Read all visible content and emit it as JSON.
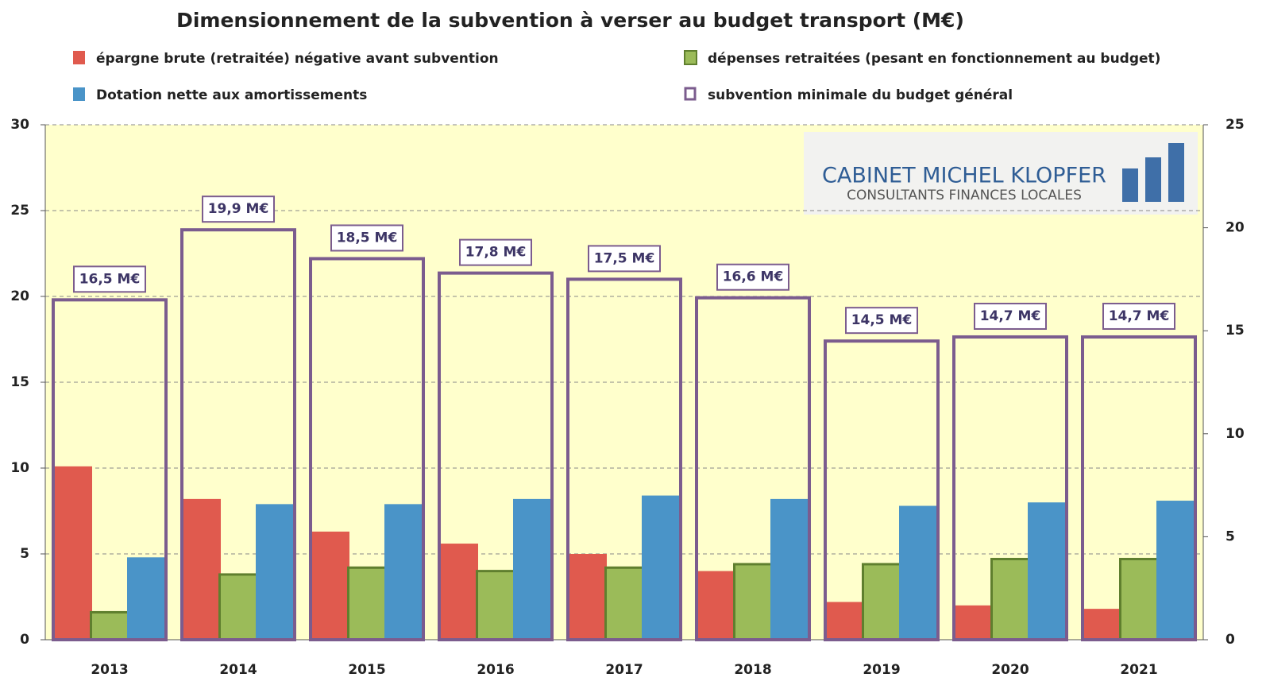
{
  "chart_data": {
    "type": "bar",
    "title": "Dimensionnement de la subvention à verser au budget transport (M€)",
    "categories": [
      "2013",
      "2014",
      "2015",
      "2016",
      "2017",
      "2018",
      "2019",
      "2020",
      "2021"
    ],
    "series": [
      {
        "name": "épargne brute (retraitée) négative avant subvention",
        "color": "#e05a4e",
        "values": [
          10.1,
          8.2,
          6.3,
          5.6,
          5.0,
          4.0,
          2.2,
          2.0,
          1.8
        ]
      },
      {
        "name": "dépenses retraitées (pesant en fonctionnement au budget)",
        "color": "#9bbb59",
        "values": [
          1.6,
          3.8,
          4.2,
          4.0,
          4.2,
          4.4,
          4.4,
          4.7,
          4.7
        ]
      },
      {
        "name": "Dotation nette aux amortissements",
        "color": "#4a94c8",
        "values": [
          4.8,
          7.9,
          7.9,
          8.2,
          8.4,
          8.2,
          7.8,
          8.0,
          8.1
        ]
      },
      {
        "name": "subvention minimale du budget général",
        "color": "#7b5c8e",
        "axis": "y2",
        "style": "outline",
        "values": [
          16.5,
          19.9,
          18.5,
          17.8,
          17.5,
          16.6,
          14.5,
          14.7,
          14.7
        ],
        "value_labels": [
          "16,5 M€",
          "19,9 M€",
          "18,5 M€",
          "17,8 M€",
          "17,5 M€",
          "16,6 M€",
          "14,5 M€",
          "14,7 M€",
          "14,7 M€"
        ]
      }
    ],
    "ylim": [
      0,
      30
    ],
    "yticks": [
      0,
      5,
      10,
      15,
      20,
      25,
      30
    ],
    "y2lim": [
      0,
      25
    ],
    "y2ticks": [
      0,
      5,
      10,
      15,
      20,
      25
    ],
    "grid": true,
    "logo": [
      "CABINET MICHEL KLOPFER",
      "CONSULTANTS FINANCES LOCALES"
    ]
  }
}
